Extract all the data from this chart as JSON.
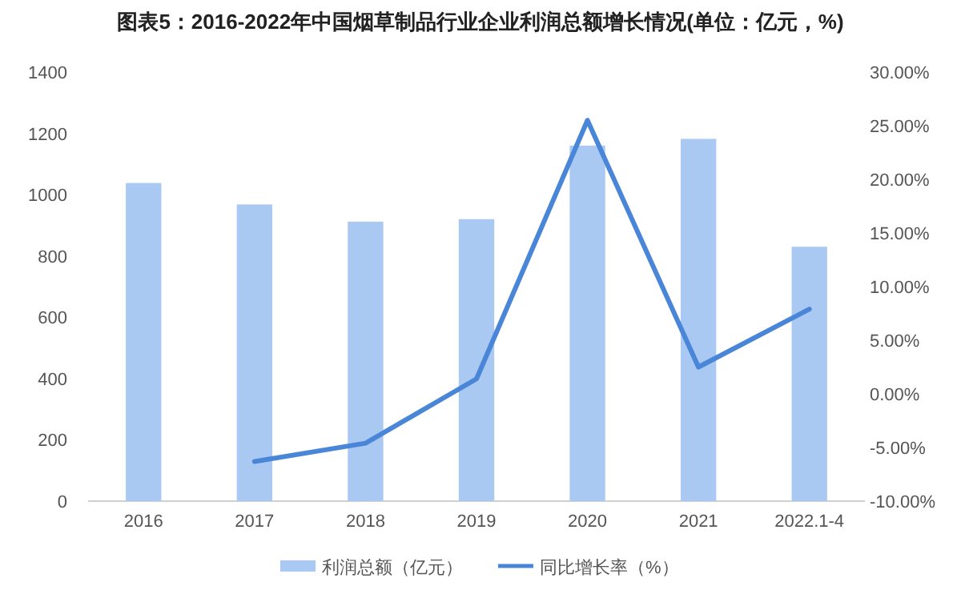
{
  "chart_data": {
    "type": "bar",
    "title": "图表5：2016-2022年中国烟草制品行业企业利润总额增长情况(单位：亿元，%)",
    "categories": [
      "2016",
      "2017",
      "2018",
      "2019",
      "2020",
      "2021",
      "2022.1-4"
    ],
    "series": [
      {
        "name": "利润总额（亿元）",
        "color": "#a9c8f2",
        "values": [
          1038,
          968,
          912,
          920,
          1160,
          1182,
          830
        ]
      },
      {
        "name": "同比增长率（%）",
        "type": "line",
        "axis": "y2",
        "color": "#4a86d8",
        "marker": "none",
        "values": [
          null,
          -6.3,
          -4.6,
          1.4,
          25.5,
          2.5,
          7.9
        ]
      }
    ],
    "ylim": [
      0,
      1400
    ],
    "yticks": [
      0,
      200,
      400,
      600,
      800,
      1000,
      1200,
      1400
    ],
    "y2lim": [
      -10,
      30
    ],
    "y2ticks": [
      {
        "value": -10,
        "label": "-10.00%"
      },
      {
        "value": -5,
        "label": "-5.00%"
      },
      {
        "value": 0,
        "label": "0.00%"
      },
      {
        "value": 5,
        "label": "5.00%"
      },
      {
        "value": 10,
        "label": "10.00%"
      },
      {
        "value": 15,
        "label": "15.00%"
      },
      {
        "value": 20,
        "label": "20.00%"
      },
      {
        "value": 25,
        "label": "25.00%"
      },
      {
        "value": 30,
        "label": "30.00%"
      }
    ],
    "grid": false,
    "legend": "bottom"
  }
}
